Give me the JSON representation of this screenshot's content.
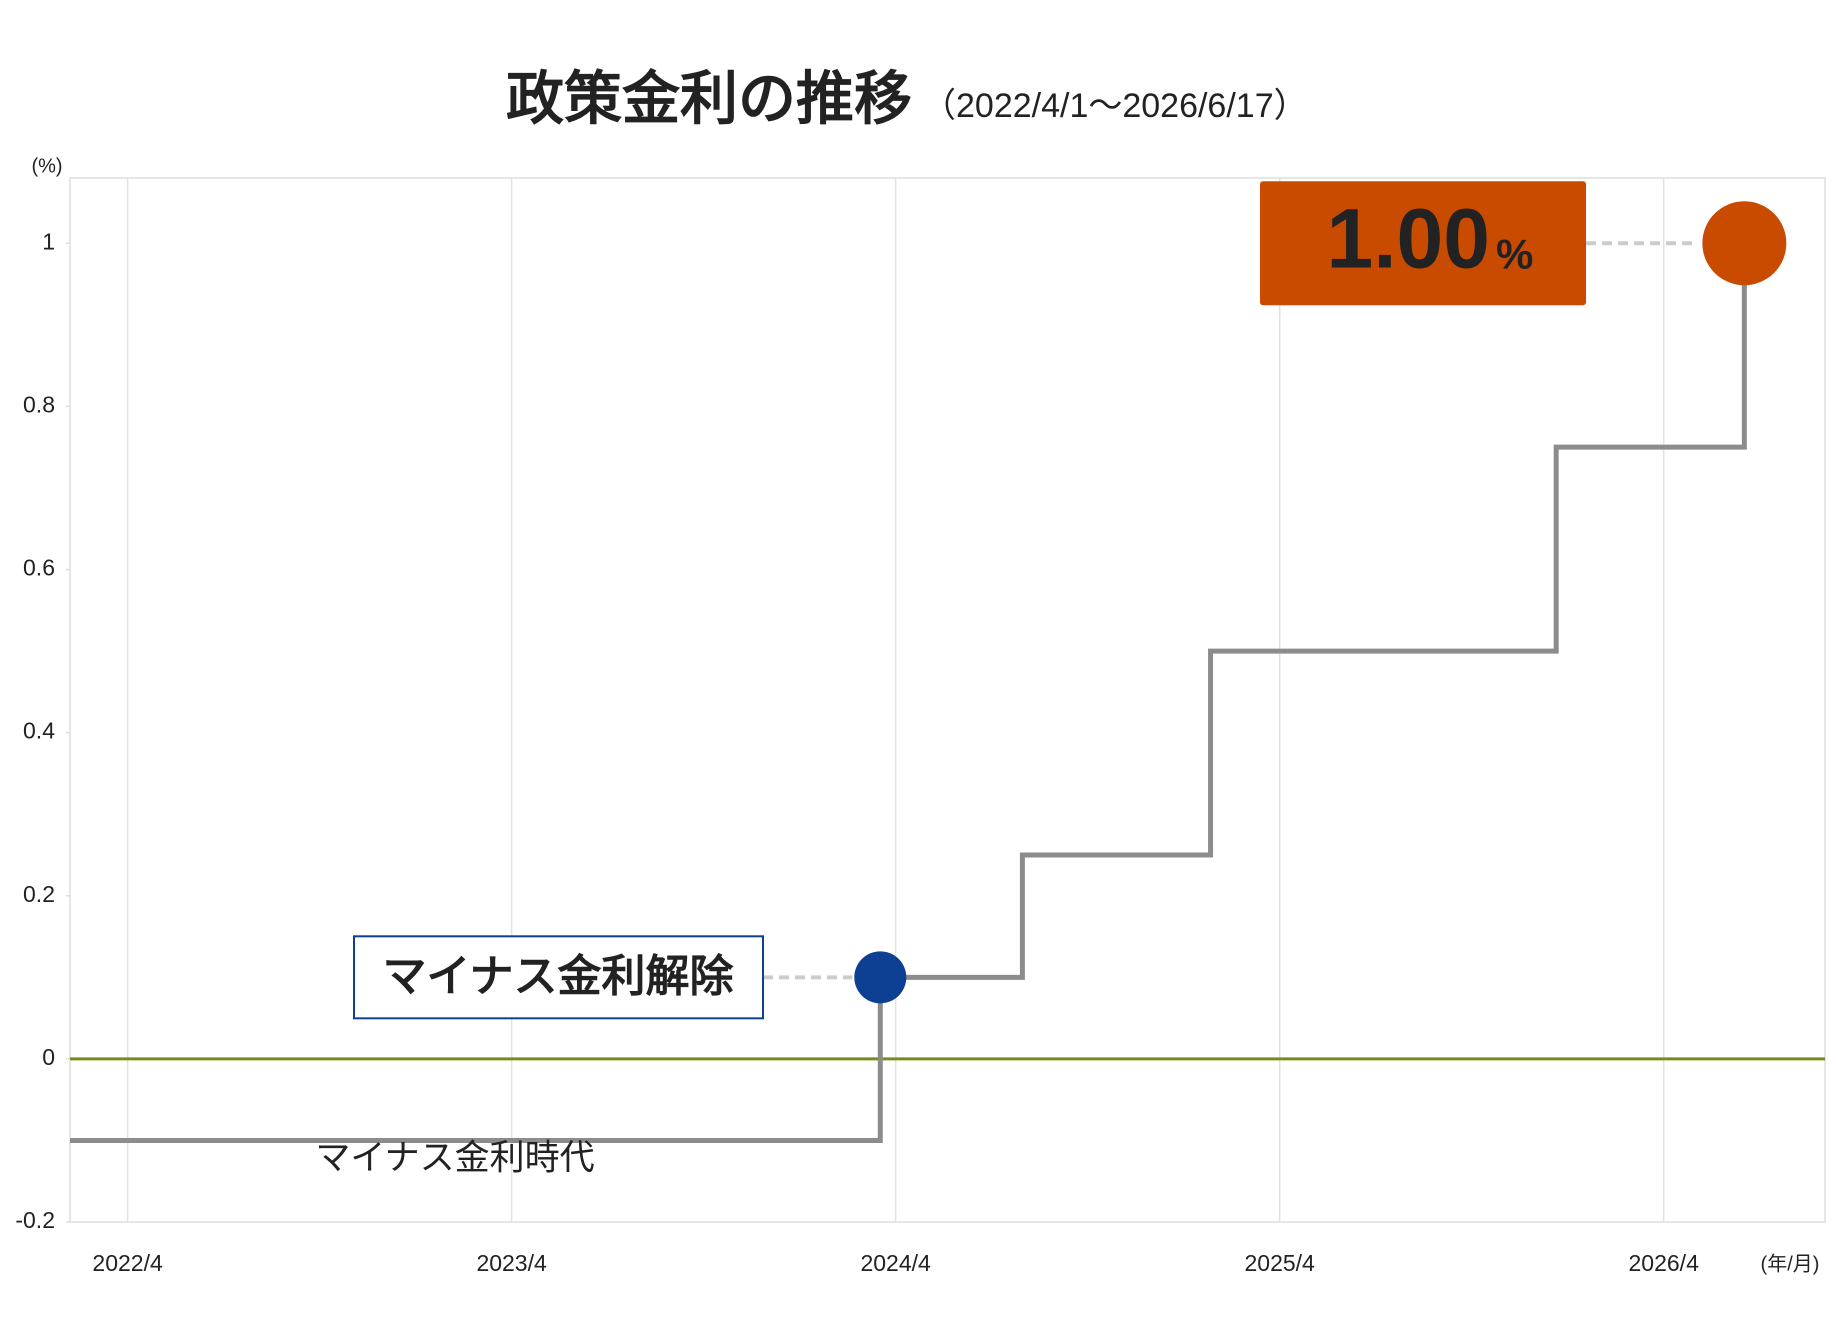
{
  "chart_data": {
    "type": "step",
    "title": "政策金利の推移",
    "subtitle": "（2022/4/1〜2026/6/17）",
    "y_unit": "(%)",
    "x_unit": "(年/月)",
    "series": [
      {
        "name": "政策金利",
        "color": "#8c8c8c",
        "x": [
          2022.1,
          2024.21,
          2024.58,
          2025.07,
          2025.97,
          2026.46
        ],
        "values": [
          -0.1,
          0.1,
          0.25,
          0.5,
          0.75,
          1.0
        ]
      }
    ],
    "xlim": [
      2022.1,
      2026.67
    ],
    "xticks": [
      {
        "value": 2022.25,
        "label": "2022/4"
      },
      {
        "value": 2023.25,
        "label": "2023/4"
      },
      {
        "value": 2024.25,
        "label": "2024/4"
      },
      {
        "value": 2025.25,
        "label": "2025/4"
      },
      {
        "value": 2026.25,
        "label": "2026/4"
      }
    ],
    "ylim": [
      -0.2,
      1.08
    ],
    "yticks": [
      -0.2,
      0,
      0.2,
      0.4,
      0.6,
      0.8,
      1
    ],
    "zero_line_color": "#7a8a1a",
    "grid": true,
    "annotations": {
      "lift_label": "マイナス金利解除",
      "lift_color": "#0d3f92",
      "rate_value": "1.00",
      "rate_unit": "%",
      "rate_color": "#c84b00",
      "era_label": "マイナス金利時代"
    }
  }
}
